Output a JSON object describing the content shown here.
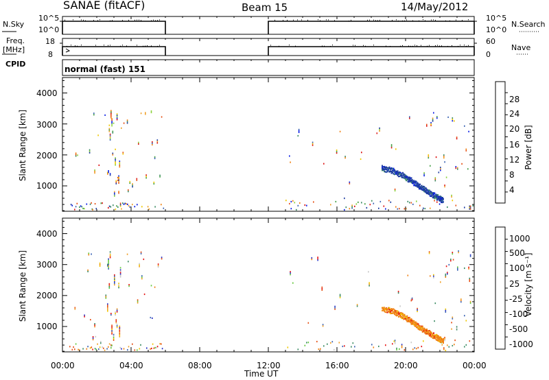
{
  "header": {
    "station": "SANAE (fitACF)",
    "beam": "Beam 15",
    "date": "14/May/2012"
  },
  "status_panels": {
    "nsky_label": "N.Sky",
    "nsky_ticks": [
      "10^5",
      "10^0"
    ],
    "nsearch_label": "N.Search",
    "nsearch_ticks": [
      "10^5",
      "10^0"
    ],
    "freq_label_line1": "Freq.",
    "freq_label_line2": "[MHz]",
    "freq_ticks": [
      "18",
      "8"
    ],
    "nave_label": "Nave",
    "nave_ticks": [
      "60",
      "0"
    ],
    "cpid_label": "CPID",
    "cpid_value": "normal (fast) 151",
    "data_intervals_hours": [
      [
        0,
        6
      ],
      [
        12,
        24
      ]
    ]
  },
  "colors": {
    "power_scale": [
      "#0a1ee6",
      "#1e3ca0",
      "#3c64b4",
      "#3c8c64",
      "#46a046",
      "#8cd23c",
      "#f0c800",
      "#f0a028",
      "#f08214",
      "#e65014",
      "#dc1414"
    ],
    "velocity_scale": [
      "#2832c8",
      "#3c64b4",
      "#3c8c64",
      "#64c83c",
      "#c8c8c8",
      "#f0c800",
      "#f0a028",
      "#f08214",
      "#e65014",
      "#e61414"
    ]
  },
  "chart_data": [
    {
      "type": "heatmap",
      "title": "Power",
      "xlabel": "",
      "ylabel": "Slant Range [km]",
      "xlim": [
        0,
        24
      ],
      "ylim": [
        180,
        4500
      ],
      "x_ticks": [
        "00:00",
        "04:00",
        "08:00",
        "12:00",
        "16:00",
        "20:00",
        "00:00"
      ],
      "y_ticks": [
        "1000",
        "2000",
        "3000",
        "4000"
      ],
      "colorbar_label": "Power [dB]",
      "colorbar_ticks": [
        "28",
        "24",
        "20",
        "16",
        "12",
        "8",
        "4"
      ],
      "colorbar_range": [
        0,
        30
      ],
      "scatter_regions": [
        {
          "t0": 0.6,
          "t1": 6.0,
          "r0": 250,
          "r1": 3500,
          "density": 0.35
        },
        {
          "t0": 2.6,
          "t1": 3.4,
          "r0": 300,
          "r1": 3550,
          "density": 0.9
        },
        {
          "t0": 12.9,
          "t1": 24.0,
          "r0": 250,
          "r1": 3500,
          "density": 0.12
        },
        {
          "t0": 21.3,
          "t1": 23.8,
          "r0": 250,
          "r1": 3500,
          "density": 0.45
        }
      ],
      "echo_band": [
        {
          "t": 18.6,
          "r": 1650
        },
        {
          "t": 19.2,
          "r": 1580
        },
        {
          "t": 19.8,
          "r": 1420
        },
        {
          "t": 20.3,
          "r": 1250
        },
        {
          "t": 20.8,
          "r": 1050
        },
        {
          "t": 21.3,
          "r": 880
        },
        {
          "t": 21.8,
          "r": 720
        },
        {
          "t": 22.2,
          "r": 600
        }
      ]
    },
    {
      "type": "heatmap",
      "title": "Velocity",
      "xlabel": "Time UT",
      "ylabel": "Slant Range [km]",
      "xlim": [
        0,
        24
      ],
      "ylim": [
        180,
        4500
      ],
      "x_ticks": [
        "00:00",
        "04:00",
        "08:00",
        "12:00",
        "16:00",
        "20:00",
        "00:00"
      ],
      "y_ticks": [
        "1000",
        "2000",
        "3000",
        "4000"
      ],
      "colorbar_label": "Velocity [m s⁻¹]",
      "colorbar_ticks": [
        "1000",
        "500",
        "100",
        "25",
        "-25",
        "-100",
        "-500",
        "-1000"
      ],
      "colorbar_range": [
        -1000,
        1000
      ],
      "scatter_regions": [
        {
          "t0": 0.6,
          "t1": 6.0,
          "r0": 250,
          "r1": 3500,
          "density": 0.35
        },
        {
          "t0": 2.6,
          "t1": 3.4,
          "r0": 300,
          "r1": 3550,
          "density": 0.9
        },
        {
          "t0": 12.9,
          "t1": 24.0,
          "r0": 250,
          "r1": 3500,
          "density": 0.12
        },
        {
          "t0": 21.3,
          "t1": 23.8,
          "r0": 250,
          "r1": 3500,
          "density": 0.45
        }
      ],
      "echo_band": [
        {
          "t": 18.6,
          "r": 1650
        },
        {
          "t": 19.2,
          "r": 1580
        },
        {
          "t": 19.8,
          "r": 1420
        },
        {
          "t": 20.3,
          "r": 1250
        },
        {
          "t": 20.8,
          "r": 1050
        },
        {
          "t": 21.3,
          "r": 880
        },
        {
          "t": 21.8,
          "r": 720
        },
        {
          "t": 22.2,
          "r": 600
        }
      ]
    }
  ]
}
